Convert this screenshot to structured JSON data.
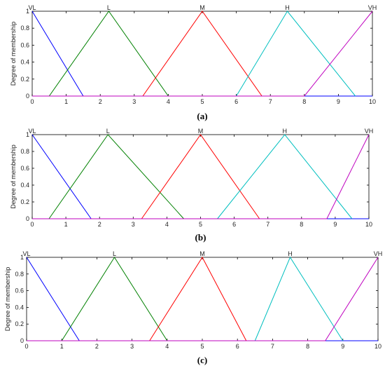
{
  "chart_data": [
    {
      "type": "line",
      "caption": "(a)",
      "ylabel": "Degree of membership",
      "xlim": [
        0,
        10
      ],
      "ylim": [
        0,
        1
      ],
      "x_ticks": [
        "0",
        "1",
        "2",
        "3",
        "4",
        "5",
        "6",
        "7",
        "8",
        "9",
        "10"
      ],
      "y_ticks": [
        "0",
        "0.2",
        "0.4",
        "0.6",
        "0.8",
        "1"
      ],
      "series": [
        {
          "name": "VL",
          "color": "#0000ff",
          "x": [
            0,
            1.5,
            10
          ],
          "y": [
            1,
            0,
            0
          ]
        },
        {
          "name": "L",
          "color": "#008000",
          "x": [
            0.5,
            2.25,
            4
          ],
          "y": [
            0,
            1,
            0
          ]
        },
        {
          "name": "M",
          "color": "#ff0000",
          "x": [
            3.25,
            5,
            6.75
          ],
          "y": [
            0,
            1,
            0
          ]
        },
        {
          "name": "H",
          "color": "#00bfbf",
          "x": [
            6,
            7.5,
            9.5
          ],
          "y": [
            0,
            1,
            0
          ]
        },
        {
          "name": "VH",
          "color": "#bf00bf",
          "x": [
            0,
            8,
            10
          ],
          "y": [
            0,
            0,
            1
          ]
        }
      ]
    },
    {
      "type": "line",
      "caption": "(b)",
      "ylabel": "Degree of membership",
      "xlim": [
        0,
        10
      ],
      "ylim": [
        0,
        1
      ],
      "x_ticks": [
        "0",
        "1",
        "2",
        "3",
        "4",
        "5",
        "6",
        "7",
        "8",
        "9",
        "10"
      ],
      "y_ticks": [
        "0",
        "0.2",
        "0.4",
        "0.6",
        "0.8",
        "1"
      ],
      "series": [
        {
          "name": "VL",
          "color": "#0000ff",
          "x": [
            0,
            1.75,
            10
          ],
          "y": [
            1,
            0,
            0
          ]
        },
        {
          "name": "L",
          "color": "#008000",
          "x": [
            0.5,
            2.25,
            4.5
          ],
          "y": [
            0,
            1,
            0
          ]
        },
        {
          "name": "M",
          "color": "#ff0000",
          "x": [
            3.25,
            5,
            6.75
          ],
          "y": [
            0,
            1,
            0
          ]
        },
        {
          "name": "H",
          "color": "#00bfbf",
          "x": [
            5.5,
            7.5,
            9.5
          ],
          "y": [
            0,
            1,
            0
          ]
        },
        {
          "name": "VH",
          "color": "#bf00bf",
          "x": [
            0,
            8.75,
            10
          ],
          "y": [
            0,
            0,
            1
          ]
        }
      ]
    },
    {
      "type": "line",
      "caption": "(c)",
      "ylabel": "Degree of membership",
      "xlim": [
        0,
        10
      ],
      "ylim": [
        0,
        1
      ],
      "x_ticks": [
        "0",
        "1",
        "2",
        "3",
        "4",
        "5",
        "6",
        "7",
        "8",
        "9",
        "10"
      ],
      "y_ticks": [
        "0",
        "0.2",
        "0.4",
        "0.6",
        "0.8",
        "1"
      ],
      "series": [
        {
          "name": "VL",
          "color": "#0000ff",
          "x": [
            0,
            1.5,
            10
          ],
          "y": [
            1,
            0,
            0
          ]
        },
        {
          "name": "L",
          "color": "#008000",
          "x": [
            1,
            2.5,
            4
          ],
          "y": [
            0,
            1,
            0
          ]
        },
        {
          "name": "M",
          "color": "#ff0000",
          "x": [
            3.5,
            5,
            6.25
          ],
          "y": [
            0,
            1,
            0
          ]
        },
        {
          "name": "H",
          "color": "#00bfbf",
          "x": [
            6.5,
            7.5,
            9
          ],
          "y": [
            0,
            1,
            0
          ]
        },
        {
          "name": "VH",
          "color": "#bf00bf",
          "x": [
            0,
            8.5,
            10
          ],
          "y": [
            0,
            0,
            1
          ]
        }
      ]
    }
  ]
}
